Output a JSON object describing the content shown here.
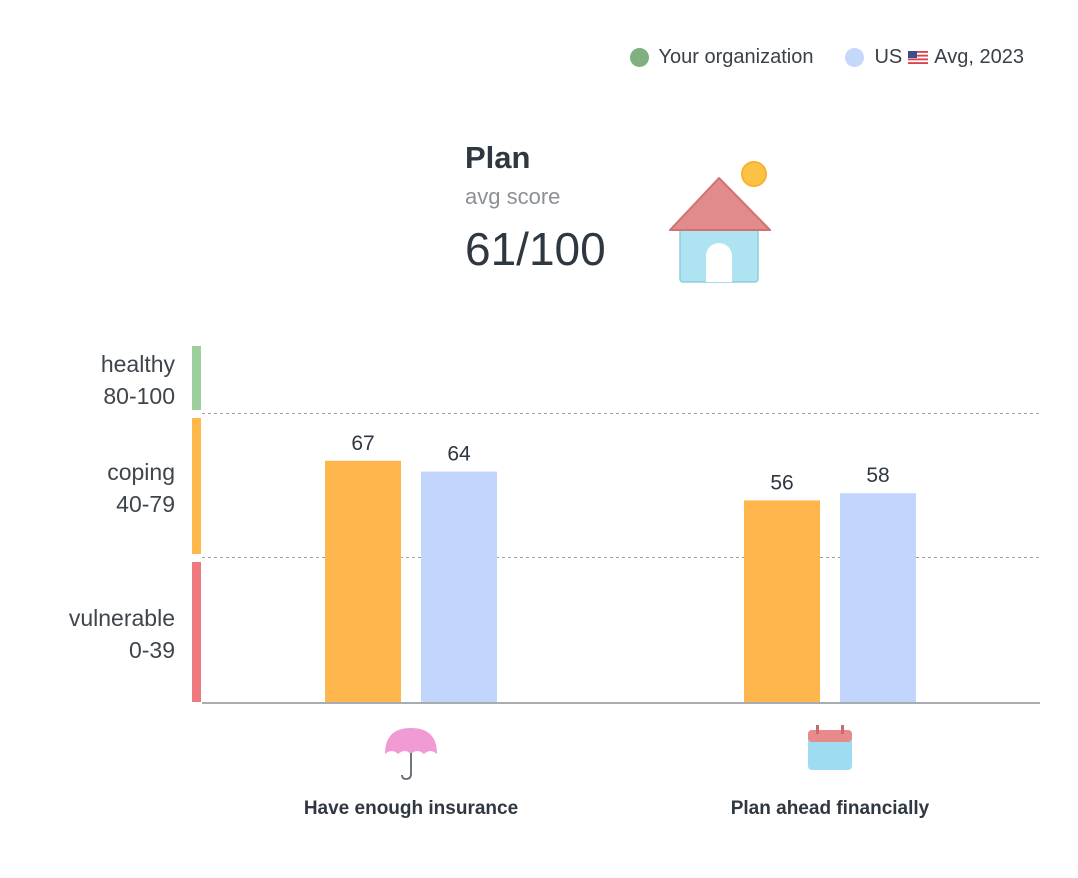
{
  "legend": [
    {
      "label": "Your organization",
      "color": "#7fb07f",
      "flag": false
    },
    {
      "label_prefix": "US",
      "label_suffix": "Avg, 2023",
      "color": "#c5d8fb",
      "flag": true
    }
  ],
  "summary": {
    "title": "Plan",
    "subtitle": "avg score",
    "score": "61/100",
    "icon": "house-sun-icon"
  },
  "chart_data": {
    "type": "bar",
    "categories": [
      "Have enough insurance",
      "Plan ahead financially"
    ],
    "category_icons": [
      "umbrella-icon",
      "calendar-icon"
    ],
    "series": [
      {
        "name": "Your organization",
        "values": [
          67,
          56
        ],
        "color": "#ffb74d"
      },
      {
        "name": "US Avg, 2023",
        "values": [
          64,
          58
        ],
        "color": "#c2d6fd"
      }
    ],
    "bands": [
      {
        "name": "healthy",
        "range_label": "80-100",
        "min": 80,
        "max": 100,
        "color": "#9dcf9d"
      },
      {
        "name": "coping",
        "range_label": "40-79",
        "min": 40,
        "max": 79,
        "color": "#ffb84a"
      },
      {
        "name": "vulnerable",
        "range_label": "0-39",
        "min": 0,
        "max": 39,
        "color": "#ee7a7d"
      }
    ],
    "ylim": [
      0,
      100
    ],
    "grid": "dashed lines at band boundaries"
  }
}
